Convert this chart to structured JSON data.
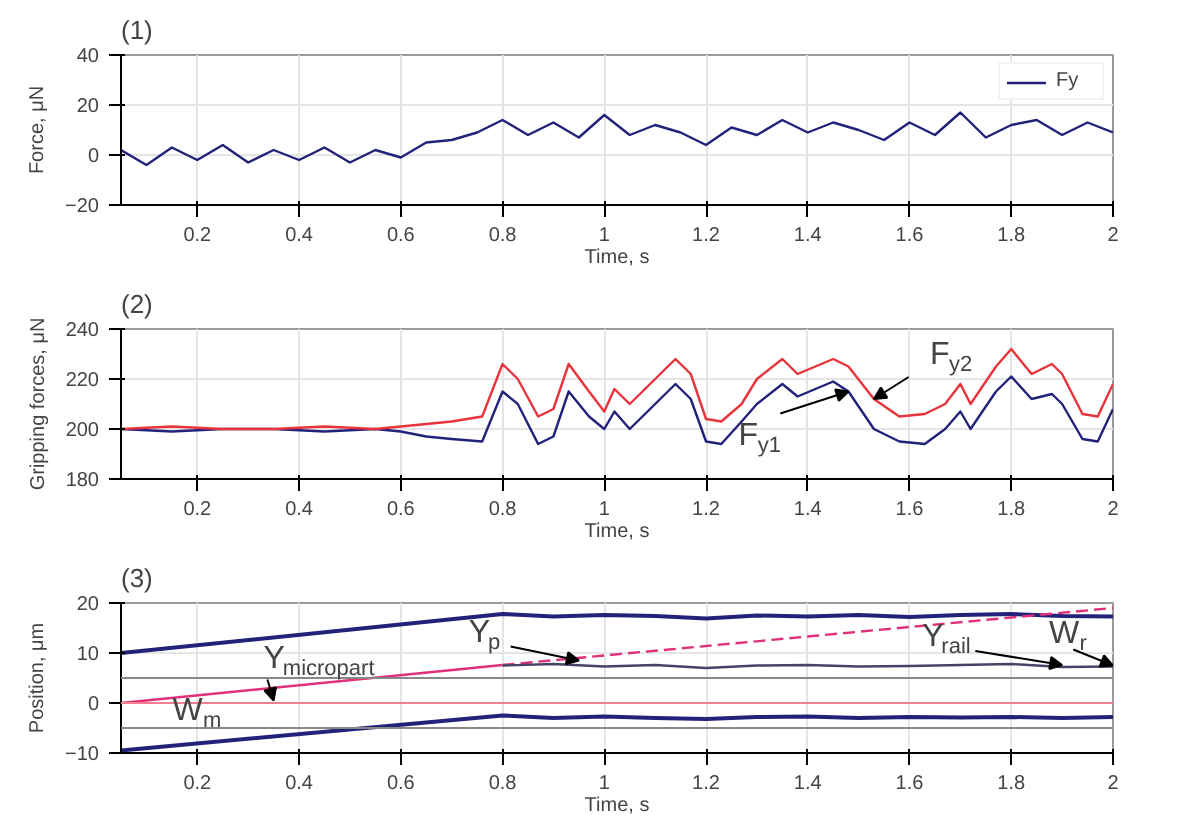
{
  "chart_data": [
    {
      "type": "line",
      "title": "(1)",
      "xlabel": "Time, s",
      "ylabel": "Force, μN",
      "xlim": [
        0.05,
        2
      ],
      "xticks": [
        0.2,
        0.4,
        0.6,
        0.8,
        1,
        1.2,
        1.4,
        1.6,
        1.8,
        2
      ],
      "ylim": [
        -20,
        40
      ],
      "yticks": [
        -20,
        0,
        20,
        40
      ],
      "grid": true,
      "legend": "top right",
      "x": [
        0.05,
        0.1,
        0.15,
        0.2,
        0.25,
        0.3,
        0.35,
        0.4,
        0.45,
        0.5,
        0.55,
        0.6,
        0.65,
        0.7,
        0.75,
        0.8,
        0.85,
        0.9,
        0.95,
        1.0,
        1.05,
        1.1,
        1.15,
        1.2,
        1.25,
        1.3,
        1.35,
        1.4,
        1.45,
        1.5,
        1.55,
        1.6,
        1.65,
        1.7,
        1.75,
        1.8,
        1.85,
        1.9,
        1.95,
        2.0
      ],
      "series": [
        {
          "name": "Fy",
          "color": "#22227a",
          "values": [
            2,
            -4,
            3,
            -2,
            4,
            -3,
            2,
            -2,
            3,
            -3,
            2,
            -1,
            5,
            6,
            9,
            14,
            8,
            13,
            7,
            16,
            8,
            12,
            9,
            4,
            11,
            8,
            14,
            9,
            13,
            10,
            6,
            13,
            8,
            17,
            7,
            12,
            14,
            8,
            13,
            9
          ]
        }
      ]
    },
    {
      "type": "line",
      "title": "(2)",
      "xlabel": "Time, s",
      "ylabel": "Gripping forces, μN",
      "xlim": [
        0.05,
        2
      ],
      "xticks": [
        0.2,
        0.4,
        0.6,
        0.8,
        1,
        1.2,
        1.4,
        1.6,
        1.8,
        2
      ],
      "ylim": [
        180,
        240
      ],
      "yticks": [
        180,
        200,
        220,
        240
      ],
      "grid": true,
      "x": [
        0.05,
        0.15,
        0.25,
        0.35,
        0.45,
        0.55,
        0.6,
        0.65,
        0.7,
        0.76,
        0.8,
        0.83,
        0.87,
        0.9,
        0.93,
        0.97,
        1.0,
        1.02,
        1.05,
        1.1,
        1.14,
        1.17,
        1.2,
        1.23,
        1.27,
        1.3,
        1.35,
        1.38,
        1.45,
        1.48,
        1.53,
        1.58,
        1.63,
        1.67,
        1.7,
        1.72,
        1.77,
        1.8,
        1.84,
        1.88,
        1.9,
        1.94,
        1.97,
        2.0
      ],
      "series": [
        {
          "color": "#22227a",
          "values": [
            200,
            199,
            200,
            200,
            199,
            200,
            199,
            197,
            196,
            195,
            215,
            210,
            194,
            197,
            215,
            205,
            200,
            207,
            200,
            210,
            218,
            212,
            195,
            194,
            203,
            210,
            218,
            213,
            219,
            215,
            200,
            195,
            194,
            200,
            207,
            200,
            215,
            221,
            212,
            214,
            210,
            196,
            195,
            208
          ]
        },
        {
          "color": "#e8343a",
          "values": [
            200,
            201,
            200,
            200,
            201,
            200,
            201,
            202,
            203,
            205,
            226,
            220,
            205,
            208,
            226,
            215,
            207,
            216,
            210,
            220,
            228,
            222,
            204,
            203,
            210,
            220,
            228,
            222,
            228,
            225,
            212,
            205,
            206,
            210,
            218,
            210,
            225,
            232,
            222,
            226,
            222,
            206,
            205,
            218
          ]
        }
      ],
      "annotations": [
        {
          "text": "F$_{y2}$",
          "x": 1.53,
          "y": 212
        },
        {
          "text": "F$_{y1}$",
          "x": 1.48,
          "y": 215
        }
      ]
    },
    {
      "type": "line",
      "title": "(3)",
      "xlabel": "Time, s",
      "ylabel": "Position, μm",
      "xlim": [
        0.05,
        2
      ],
      "xticks": [
        0.2,
        0.4,
        0.6,
        0.8,
        1,
        1.2,
        1.4,
        1.6,
        1.8,
        2
      ],
      "ylim": [
        -10,
        20
      ],
      "yticks": [
        -10,
        0,
        10,
        20
      ],
      "grid": true,
      "series": [
        {
          "color": "#22227a",
          "x": [
            0.05,
            0.8,
            0.9,
            1.0,
            1.1,
            1.2,
            1.3,
            1.4,
            1.5,
            1.6,
            1.7,
            1.8,
            1.9,
            2.0
          ],
          "values": [
            10,
            17.8,
            17.3,
            17.6,
            17.4,
            16.9,
            17.5,
            17.3,
            17.6,
            17.2,
            17.6,
            17.8,
            17.4,
            17.3
          ]
        },
        {
          "color": "#22227a",
          "x": [
            0.05,
            0.8,
            0.9,
            1.0,
            1.1,
            1.2,
            1.3,
            1.4,
            1.5,
            1.6,
            1.7,
            1.8,
            1.9,
            2.0
          ],
          "values": [
            -9.5,
            -2.5,
            -3,
            -2.7,
            -3,
            -3.2,
            -2.8,
            -2.7,
            -3,
            -2.8,
            -2.9,
            -2.8,
            -3,
            -2.8
          ]
        },
        {
          "color": "#e0307a",
          "x": [
            0.05,
            0.8
          ],
          "values": [
            0,
            7.6
          ],
          "line_style": "solid"
        },
        {
          "color": "#e0307a",
          "x": [
            0.8,
            2.0
          ],
          "values": [
            7.6,
            19
          ],
          "line_style": "dashed"
        },
        {
          "color": "#444466",
          "x": [
            0.8,
            0.9,
            1.0,
            1.1,
            1.2,
            1.3,
            1.4,
            1.5,
            1.6,
            1.7,
            1.8,
            1.9,
            2.0
          ],
          "values": [
            7.5,
            7.8,
            7.3,
            7.6,
            7,
            7.5,
            7.6,
            7.3,
            7.4,
            7.6,
            7.8,
            7.2,
            7.3
          ]
        }
      ],
      "ref_lines": [
        {
          "axis": "y",
          "value": 5,
          "color": "#888888"
        },
        {
          "axis": "y",
          "value": -5,
          "color": "#888888"
        },
        {
          "axis": "y",
          "value": 0,
          "color": "#f08090"
        }
      ],
      "annotations": [
        {
          "text": "Y$_{micropart}$",
          "x": 0.35,
          "y": 0.5
        },
        {
          "text": "Y$_{p}$",
          "x": 0.95,
          "y": 8.5
        },
        {
          "text": "Y$_{rail}$",
          "x": 1.9,
          "y": 7.6
        },
        {
          "text": "W$_{m}$",
          "x": 0.12,
          "y": 0
        },
        {
          "text": "W$_{r}$",
          "x": 2.0,
          "y": 7.5
        }
      ]
    }
  ]
}
